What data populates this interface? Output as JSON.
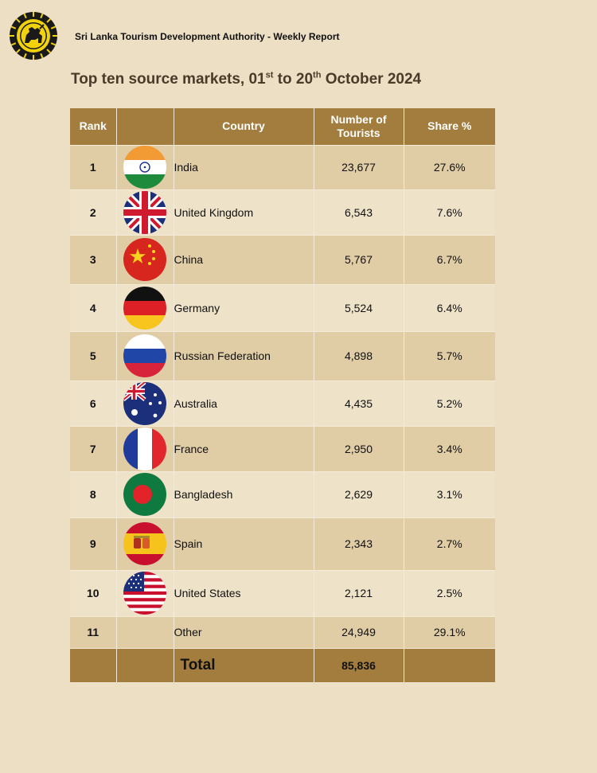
{
  "header": {
    "org_title": "Sri Lanka Tourism Development Authority - Weekly Report",
    "title_prefix": "Top ten source markets, 01",
    "title_sup1": "st",
    "title_mid": " to 20",
    "title_sup2": "th",
    "title_suffix": " October 2024"
  },
  "table": {
    "columns": [
      "Rank",
      "",
      "Country",
      "Number of Tourists",
      "Share %"
    ],
    "rows": [
      {
        "rank": "1",
        "flag": "india-flag-icon",
        "country": "India",
        "tourists": "23,677",
        "share": "27.6%"
      },
      {
        "rank": "2",
        "flag": "uk-flag-icon",
        "country": "United Kingdom",
        "tourists": "6,543",
        "share": "7.6%"
      },
      {
        "rank": "3",
        "flag": "china-flag-icon",
        "country": "China",
        "tourists": "5,767",
        "share": "6.7%"
      },
      {
        "rank": "4",
        "flag": "germany-flag-icon",
        "country": "Germany",
        "tourists": "5,524",
        "share": "6.4%"
      },
      {
        "rank": "5",
        "flag": "russia-flag-icon",
        "country": "Russian Federation",
        "tourists": "4,898",
        "share": "5.7%"
      },
      {
        "rank": "6",
        "flag": "australia-flag-icon",
        "country": "Australia",
        "tourists": "4,435",
        "share": "5.2%"
      },
      {
        "rank": "7",
        "flag": "france-flag-icon",
        "country": "France",
        "tourists": "2,950",
        "share": "3.4%"
      },
      {
        "rank": "8",
        "flag": "bangladesh-flag-icon",
        "country": "Bangladesh",
        "tourists": "2,629",
        "share": "3.1%"
      },
      {
        "rank": "9",
        "flag": "spain-flag-icon",
        "country": "Spain",
        "tourists": "2,343",
        "share": "2.7%"
      },
      {
        "rank": "10",
        "flag": "usa-flag-icon",
        "country": "United States",
        "tourists": "2,121",
        "share": "2.5%"
      },
      {
        "rank": "11",
        "flag": "",
        "country": "Other",
        "tourists": "24,949",
        "share": "29.1%"
      }
    ],
    "total": {
      "label": "Total",
      "tourists": "85,836"
    }
  },
  "colors": {
    "page_background": "#ecdfc4",
    "header_row": "#a37d3d",
    "row_dark": "#e0cca5",
    "row_light": "#eee2c8"
  }
}
